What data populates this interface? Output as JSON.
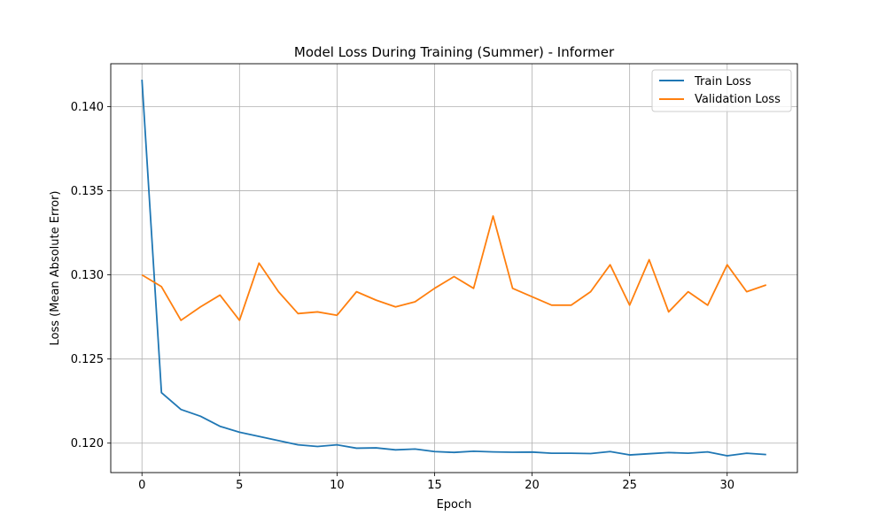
{
  "chart_data": {
    "type": "line",
    "title": "Model Loss During Training (Summer) - Informer",
    "xlabel": "Epoch",
    "ylabel": "Loss (Mean Absolute Error)",
    "xlim": [
      -1.6,
      33.6
    ],
    "ylim": [
      0.11825,
      0.14255
    ],
    "xticks": [
      0,
      5,
      10,
      15,
      20,
      25,
      30
    ],
    "yticks": [
      0.12,
      0.125,
      0.13,
      0.135,
      0.14
    ],
    "xtick_labels": [
      "0",
      "5",
      "10",
      "15",
      "20",
      "25",
      "30"
    ],
    "ytick_labels": [
      "0.120",
      "0.125",
      "0.130",
      "0.135",
      "0.140"
    ],
    "grid": true,
    "legend_position": "top-right",
    "x": [
      0,
      1,
      2,
      3,
      4,
      5,
      6,
      7,
      8,
      9,
      10,
      11,
      12,
      13,
      14,
      15,
      16,
      17,
      18,
      19,
      20,
      21,
      22,
      23,
      24,
      25,
      26,
      27,
      28,
      29,
      30,
      31,
      32
    ],
    "series": [
      {
        "name": "Train Loss",
        "color": "#1f77b4",
        "values": [
          0.1416,
          0.123,
          0.122,
          0.1216,
          0.121,
          0.12065,
          0.1204,
          0.12015,
          0.1199,
          0.1198,
          0.1199,
          0.1197,
          0.11972,
          0.1196,
          0.11965,
          0.1195,
          0.11945,
          0.11952,
          0.11948,
          0.11946,
          0.11947,
          0.1194,
          0.1194,
          0.11938,
          0.1195,
          0.1193,
          0.11937,
          0.11944,
          0.1194,
          0.11948,
          0.11925,
          0.1194,
          0.11932
        ]
      },
      {
        "name": "Validation Loss",
        "color": "#ff7f0e",
        "values": [
          0.13,
          0.1293,
          0.1273,
          0.1281,
          0.1288,
          0.1273,
          0.1307,
          0.129,
          0.1277,
          0.1278,
          0.1276,
          0.129,
          0.1285,
          0.1281,
          0.1284,
          0.1292,
          0.1299,
          0.1292,
          0.1335,
          0.1292,
          0.1287,
          0.1282,
          0.1282,
          0.129,
          0.1306,
          0.1282,
          0.1309,
          0.1278,
          0.129,
          0.1282,
          0.1306,
          0.129,
          0.1294
        ]
      }
    ]
  }
}
